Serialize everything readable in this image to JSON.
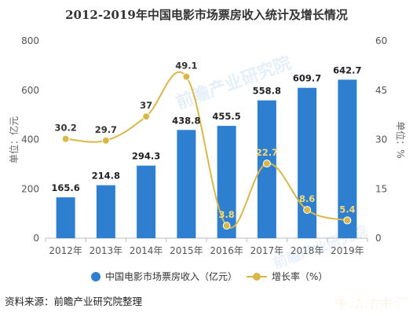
{
  "chart_data": {
    "type": "bar",
    "title": "2012-2019年中国电影市场票房收入统计及增长情况",
    "categories": [
      "2012年",
      "2013年",
      "2014年",
      "2015年",
      "2016年",
      "2017年",
      "2018年",
      "2019年"
    ],
    "series": [
      {
        "name": "中国电影市场票房收入（亿元）",
        "type": "bar",
        "axis": "left",
        "values": [
          165.6,
          214.8,
          294.3,
          438.8,
          455.5,
          558.8,
          609.7,
          642.7
        ],
        "labels": [
          "165.6",
          "214.8",
          "294.3",
          "438.8",
          "455.5",
          "558.8",
          "609.7",
          "642.7"
        ],
        "color": "#2f7fd0"
      },
      {
        "name": "增长率（%）",
        "type": "line",
        "axis": "right",
        "values": [
          30.2,
          29.7,
          37,
          49.1,
          3.8,
          22.7,
          8.6,
          5.4
        ],
        "labels": [
          "30.2",
          "29.7",
          "37",
          "49.1",
          "3.8",
          "22.7",
          "8.6",
          "5.4"
        ],
        "color": "#d9b84a"
      }
    ],
    "y_left": {
      "label": "单位：亿元",
      "ylim": [
        0,
        800
      ],
      "ticks": [
        "0",
        "200",
        "400",
        "600",
        "800"
      ]
    },
    "y_right": {
      "label": "单位：%",
      "ylim": [
        0,
        60
      ],
      "ticks": [
        "0",
        "15",
        "30",
        "45",
        "60"
      ]
    },
    "grid": false,
    "legend": "bottom"
  },
  "source": "资料来源：前瞻产业研究院整理",
  "watermark": {
    "text": "前瞻产业研究院",
    "corner_badge": "手动动手游"
  },
  "colors": {
    "bar": "#2f7fd0",
    "line": "#d9b84a",
    "title": "#333333",
    "badge": "#f0891e"
  }
}
